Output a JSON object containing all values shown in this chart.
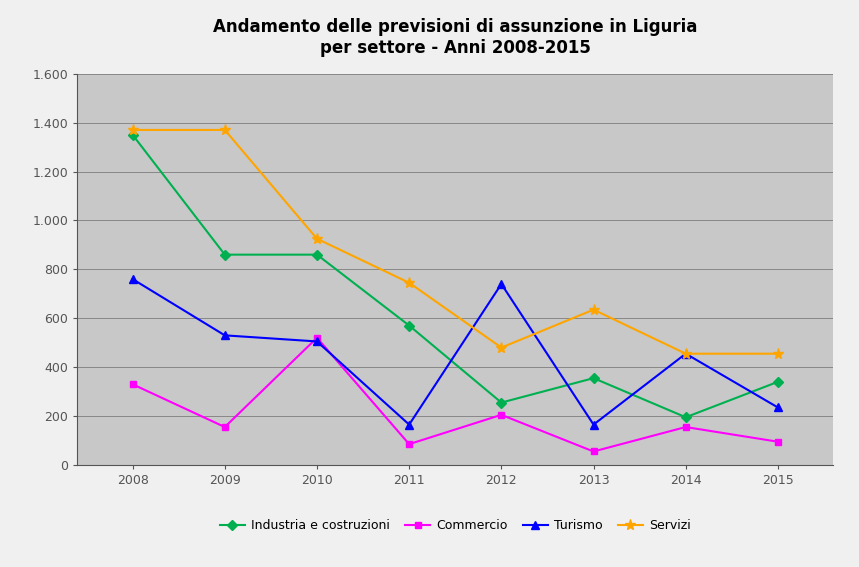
{
  "title": "Andamento delle previsioni di assunzione in Liguria\nper settore - Anni 2008-2015",
  "years": [
    2008,
    2009,
    2010,
    2011,
    2012,
    2013,
    2014,
    2015
  ],
  "series": {
    "Industria e costruzioni": {
      "values": [
        1350,
        860,
        860,
        570,
        255,
        355,
        195,
        340
      ],
      "color": "#00B050",
      "marker": "D",
      "markersize": 5,
      "linewidth": 1.5
    },
    "Commercio": {
      "values": [
        330,
        155,
        520,
        85,
        205,
        55,
        155,
        95
      ],
      "color": "#FF00FF",
      "marker": "s",
      "markersize": 5,
      "linewidth": 1.5
    },
    "Turismo": {
      "values": [
        760,
        530,
        505,
        165,
        740,
        165,
        455,
        235
      ],
      "color": "#0000FF",
      "marker": "^",
      "markersize": 6,
      "linewidth": 1.5
    },
    "Servizi": {
      "values": [
        1370,
        1370,
        925,
        745,
        480,
        635,
        455,
        455
      ],
      "color": "#FFA500",
      "marker": "*",
      "markersize": 8,
      "linewidth": 1.5
    }
  },
  "ylim": [
    0,
    1600
  ],
  "yticks": [
    0,
    200,
    400,
    600,
    800,
    1000,
    1200,
    1400,
    1600
  ],
  "ytick_labels": [
    "0",
    "200",
    "400",
    "600",
    "800",
    "1.000",
    "1.200",
    "1.400",
    "1.600"
  ],
  "figure_bg_color": "#F0F0F0",
  "plot_area_color": "#C8C8C8",
  "grid_color": "#888888",
  "spine_color": "#555555",
  "legend_order": [
    "Industria e costruzioni",
    "Commercio",
    "Turismo",
    "Servizi"
  ],
  "title_fontsize": 12,
  "axis_fontsize": 9,
  "tick_color": "#555555"
}
